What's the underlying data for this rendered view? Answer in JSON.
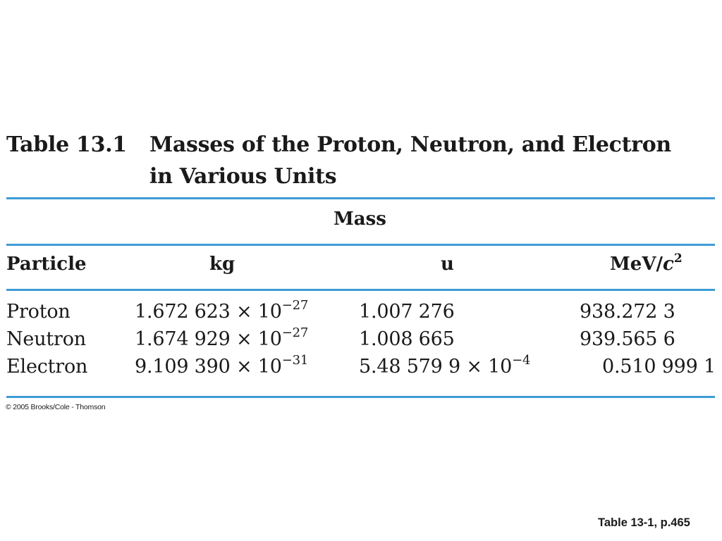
{
  "table": {
    "number_label": "Table 13.1",
    "title": "Masses of the Proton, Neutron, and Electron in Various Units",
    "group_header": "Mass",
    "columns": {
      "particle": "Particle",
      "kg": "kg",
      "u": "u",
      "mev_unit": "MeV/",
      "mev_c": "c",
      "mev_exp": "2"
    },
    "rows": [
      {
        "particle": "Proton",
        "kg_mantissa": "1.672 623 × 10",
        "kg_exp": "−27",
        "u_mantissa": "1.007 276",
        "u_exp": "",
        "mev": "938.272 3"
      },
      {
        "particle": "Neutron",
        "kg_mantissa": "1.674 929 × 10",
        "kg_exp": "−27",
        "u_mantissa": "1.008 665",
        "u_exp": "",
        "mev": "939.565 6"
      },
      {
        "particle": "Electron",
        "kg_mantissa": "9.109 390 × 10",
        "kg_exp": "−31",
        "u_mantissa": "5.48 579 9 × 10",
        "u_exp": "−4",
        "mev": "0.510 999 1"
      }
    ]
  },
  "copyright": "© 2005 Brooks/Cole - Thomson",
  "slide_caption": "Table 13-1, p.465",
  "colors": {
    "rule": "#3d9cd6",
    "text": "#1a1a1a",
    "background": "#ffffff"
  }
}
